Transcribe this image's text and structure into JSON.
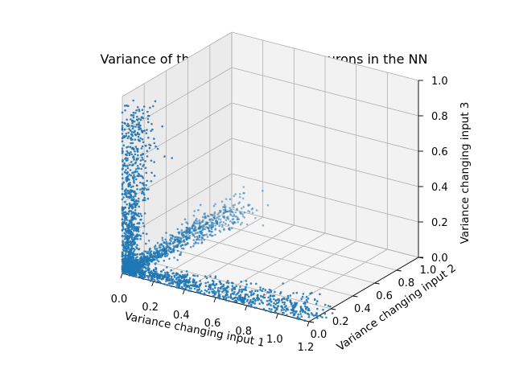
{
  "chart_data": {
    "type": "scatter",
    "title": "Variance of the activation of the neurons in the NN",
    "xlabel": "Variance changing input 1",
    "ylabel": "Variance changing input 2",
    "zlabel": "Variance changing input 3",
    "xlim": [
      0,
      1.2
    ],
    "ylim": [
      0,
      1.0
    ],
    "zlim": [
      0,
      1.0
    ],
    "xticks": [
      "0.0",
      "0.2",
      "0.4",
      "0.6",
      "0.8",
      "1.0",
      "1.2"
    ],
    "yticks": [
      "0.0",
      "0.2",
      "0.4",
      "0.6",
      "0.8",
      "1.0"
    ],
    "zticks": [
      "0.0",
      "0.2",
      "0.4",
      "0.6",
      "0.8",
      "1.0"
    ],
    "grid": true,
    "color": "#1f77b4",
    "clusters": [
      {
        "description_of_shape": "arm along input 1",
        "from": [
          0.02,
          0.02,
          0.02
        ],
        "to": [
          1.2,
          0.05,
          0.03
        ]
      },
      {
        "description_of_shape": "arm along input 2",
        "from": [
          0.02,
          0.02,
          0.02
        ],
        "to": [
          0.08,
          0.95,
          0.04
        ]
      },
      {
        "description_of_shape": "arm along input 3",
        "from": [
          0.02,
          0.02,
          0.02
        ],
        "to": [
          0.04,
          0.05,
          0.92
        ]
      }
    ]
  }
}
